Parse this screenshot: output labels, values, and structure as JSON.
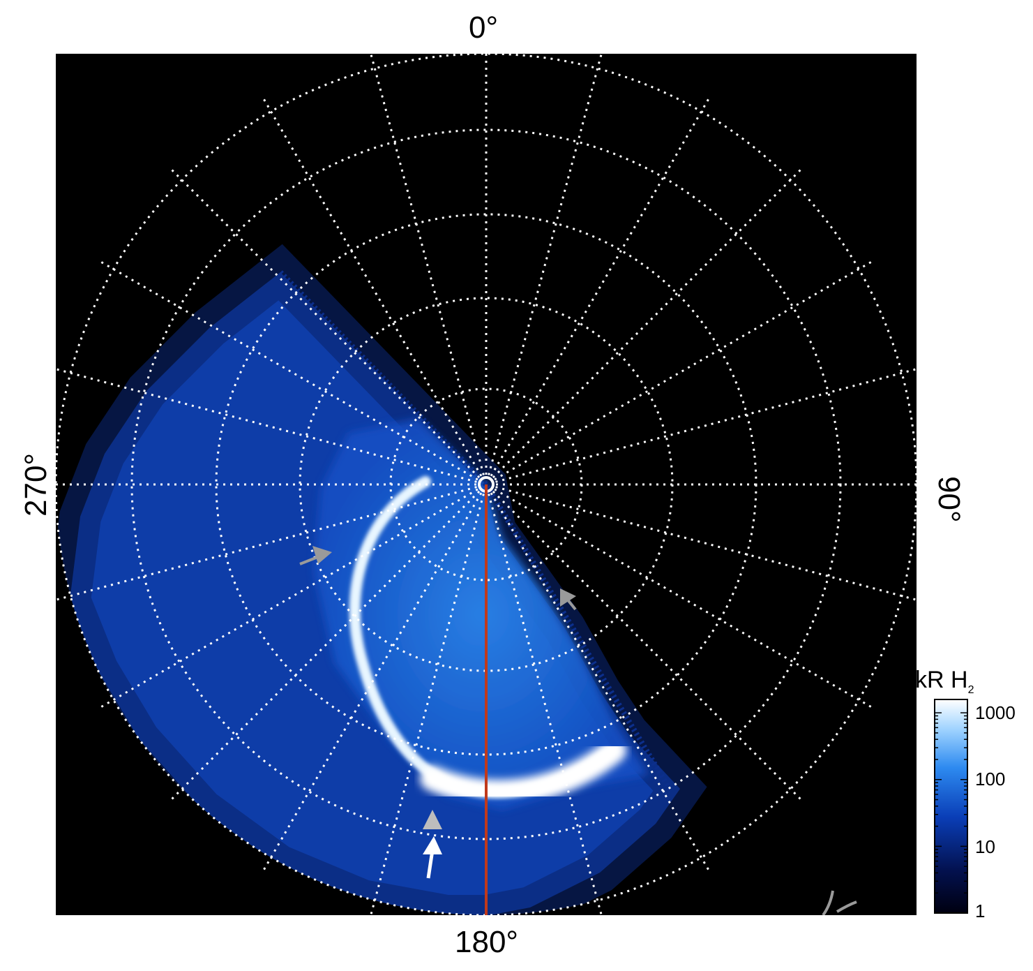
{
  "figure": {
    "type": "polar auroral image",
    "background": "#000000",
    "labels": {
      "top": "0°",
      "right": "90°",
      "bottom": "180°",
      "left": "270°"
    },
    "meridian_line_color": "#c0391b",
    "arrow_colors": {
      "gray": "#9a9a9a",
      "white": "#ffffff"
    }
  },
  "colorbar": {
    "title_main": "kR H",
    "title_sub": "2",
    "scale": "log",
    "ticks": [
      "1000",
      "100",
      "10",
      "1"
    ],
    "colors": [
      "#000010",
      "#03114f",
      "#0a3eb7",
      "#2d8af0",
      "#9fd3ff",
      "#ffffff"
    ]
  }
}
